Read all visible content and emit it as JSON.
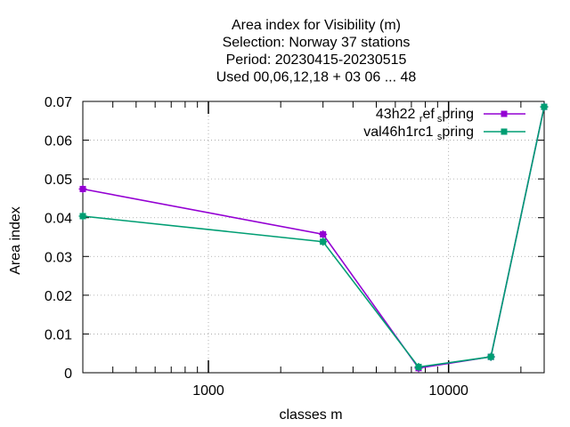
{
  "chart_data": {
    "type": "line",
    "title_lines": [
      "Area index  for Visibility (m)",
      "Selection: Norway     37 stations",
      "Period: 20230415-20230515",
      "Used  00,06,12,18  + 03 06 ... 48"
    ],
    "xlabel": "classes m",
    "ylabel": "Area index",
    "x_scale": "log",
    "xlim": [
      300,
      25000
    ],
    "ylim": [
      0,
      0.07
    ],
    "x_ticks": [
      1000,
      10000
    ],
    "x_tick_labels": [
      "1000",
      "10000"
    ],
    "y_ticks": [
      0,
      0.01,
      0.02,
      0.03,
      0.04,
      0.05,
      0.06,
      0.07
    ],
    "y_tick_labels": [
      "0",
      "0.01",
      "0.02",
      "0.03",
      "0.04",
      "0.05",
      "0.06",
      "0.07"
    ],
    "grid": true,
    "legend_position": "top-right",
    "series": [
      {
        "legend": {
          "base": "43h22",
          "sub1": "r",
          "mid": "ef",
          "sub2": "s",
          "end": "pring"
        },
        "color": "#9400d3",
        "x": [
          300,
          3000,
          7500,
          15000,
          25000
        ],
        "y": [
          0.0474,
          0.0357,
          0.0012,
          0.0041,
          0.0686
        ]
      },
      {
        "legend": {
          "base": "val46h1rc1",
          "sub1": "",
          "mid": "",
          "sub2": "s",
          "end": "pring"
        },
        "color": "#009e73",
        "x": [
          300,
          3000,
          7500,
          15000,
          25000
        ],
        "y": [
          0.0404,
          0.0338,
          0.0015,
          0.0041,
          0.0686
        ]
      }
    ]
  }
}
